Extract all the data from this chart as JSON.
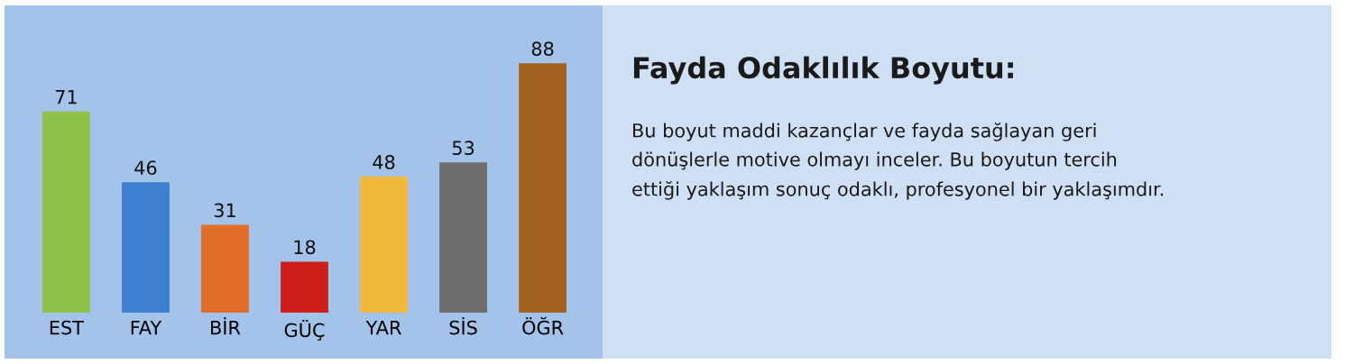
{
  "chart_data": [
    {
      "type": "bar",
      "categories": [
        "EST",
        "FAY",
        "BİR",
        "GÜÇ",
        "YAR",
        "SİS",
        "ÖĞR"
      ],
      "values": [
        71,
        46,
        31,
        18,
        48,
        53,
        88
      ],
      "colors": [
        "#8fc04a",
        "#3f7fcf",
        "#e06e28",
        "#cc1f1a",
        "#f0b93c",
        "#6e6e6e",
        "#a0621e"
      ],
      "data_labels": true,
      "grid": false
    },
    {
      "type": "other",
      "title": "Fayda Odaklılık Boyutu:",
      "annotations": [
        "Bu boyut maddi kazançlar ve fayda sağlayan geri\ndönüşlerle motive olmayı inceler. Bu boyutun tercih\nettiği yaklaşım sonuç odaklı, profesyonel bir yaklaşımdır."
      ]
    }
  ]
}
